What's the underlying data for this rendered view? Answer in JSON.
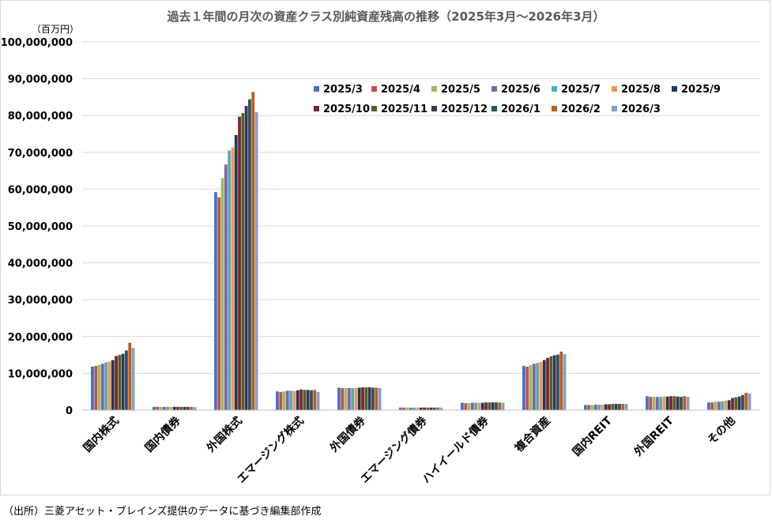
{
  "chart_data": {
    "type": "bar",
    "title": "過去１年間の月次の資産クラス別純資産残高の推移（2025年3月～2026年3月）",
    "unit": "（百万円）",
    "source": "（出所）三菱アセット・ブレインズ提供のデータに基づき編集部作成",
    "ylim": [
      0,
      100000000
    ],
    "yticks": [
      0,
      10000000,
      20000000,
      30000000,
      40000000,
      50000000,
      60000000,
      70000000,
      80000000,
      90000000,
      100000000
    ],
    "ytick_labels": [
      "0",
      "10,000,000",
      "20,000,000",
      "30,000,000",
      "40,000,000",
      "50,000,000",
      "60,000,000",
      "70,000,000",
      "80,000,000",
      "90,000,000",
      "100,000,000"
    ],
    "grid": true,
    "legend_position": "top-right",
    "categories": [
      "国内株式",
      "国内債券",
      "外国株式",
      "エマージング株式",
      "外国債券",
      "エマージング債券",
      "ハイイールド債券",
      "複合資産",
      "国内REIT",
      "外国REIT",
      "その他"
    ],
    "series": [
      {
        "name": "2025/3",
        "color": "#4472c4",
        "values": [
          11800000,
          900000,
          59200000,
          5100000,
          6100000,
          700000,
          2000000,
          12000000,
          1400000,
          3800000,
          2100000
        ]
      },
      {
        "name": "2025/4",
        "color": "#c0504d",
        "values": [
          12000000,
          900000,
          57800000,
          4900000,
          6000000,
          700000,
          1900000,
          11800000,
          1400000,
          3600000,
          2100000
        ]
      },
      {
        "name": "2025/5",
        "color": "#9bbb59",
        "values": [
          12300000,
          900000,
          63000000,
          5100000,
          6000000,
          700000,
          1900000,
          12200000,
          1400000,
          3600000,
          2300000
        ]
      },
      {
        "name": "2025/6",
        "color": "#8064a2",
        "values": [
          12600000,
          900000,
          66700000,
          5300000,
          6000000,
          700000,
          2000000,
          12600000,
          1500000,
          3600000,
          2300000
        ]
      },
      {
        "name": "2025/7",
        "color": "#4bacc6",
        "values": [
          13000000,
          900000,
          70500000,
          5300000,
          6000000,
          700000,
          2000000,
          12800000,
          1500000,
          3600000,
          2400000
        ]
      },
      {
        "name": "2025/8",
        "color": "#f79646",
        "values": [
          13200000,
          900000,
          71300000,
          5200000,
          6000000,
          700000,
          2000000,
          13100000,
          1500000,
          3700000,
          2600000
        ]
      },
      {
        "name": "2025/9",
        "color": "#1f3864",
        "values": [
          13600000,
          900000,
          74700000,
          5400000,
          6100000,
          700000,
          2000000,
          13600000,
          1600000,
          3700000,
          2700000
        ]
      },
      {
        "name": "2025/10",
        "color": "#7f2626",
        "values": [
          14700000,
          900000,
          79700000,
          5600000,
          6200000,
          700000,
          2100000,
          14200000,
          1600000,
          3800000,
          3300000
        ]
      },
      {
        "name": "2025/11",
        "color": "#4f6228",
        "values": [
          15000000,
          900000,
          80700000,
          5500000,
          6200000,
          700000,
          2100000,
          14600000,
          1700000,
          3800000,
          3500000
        ]
      },
      {
        "name": "2025/12",
        "color": "#3f3151",
        "values": [
          15300000,
          900000,
          82600000,
          5500000,
          6200000,
          700000,
          2100000,
          14900000,
          1700000,
          3700000,
          3700000
        ]
      },
      {
        "name": "2026/1",
        "color": "#215967",
        "values": [
          16200000,
          900000,
          84400000,
          5400000,
          6100000,
          700000,
          2100000,
          15100000,
          1700000,
          3600000,
          4100000
        ]
      },
      {
        "name": "2026/2",
        "color": "#c55a11",
        "values": [
          18300000,
          900000,
          86400000,
          5500000,
          6100000,
          700000,
          2100000,
          15900000,
          1700000,
          3800000,
          4700000
        ]
      },
      {
        "name": "2026/3",
        "color": "#7f9fcf",
        "values": [
          16900000,
          800000,
          80900000,
          4900000,
          6000000,
          700000,
          2000000,
          15200000,
          1700000,
          3600000,
          4500000
        ]
      }
    ]
  }
}
